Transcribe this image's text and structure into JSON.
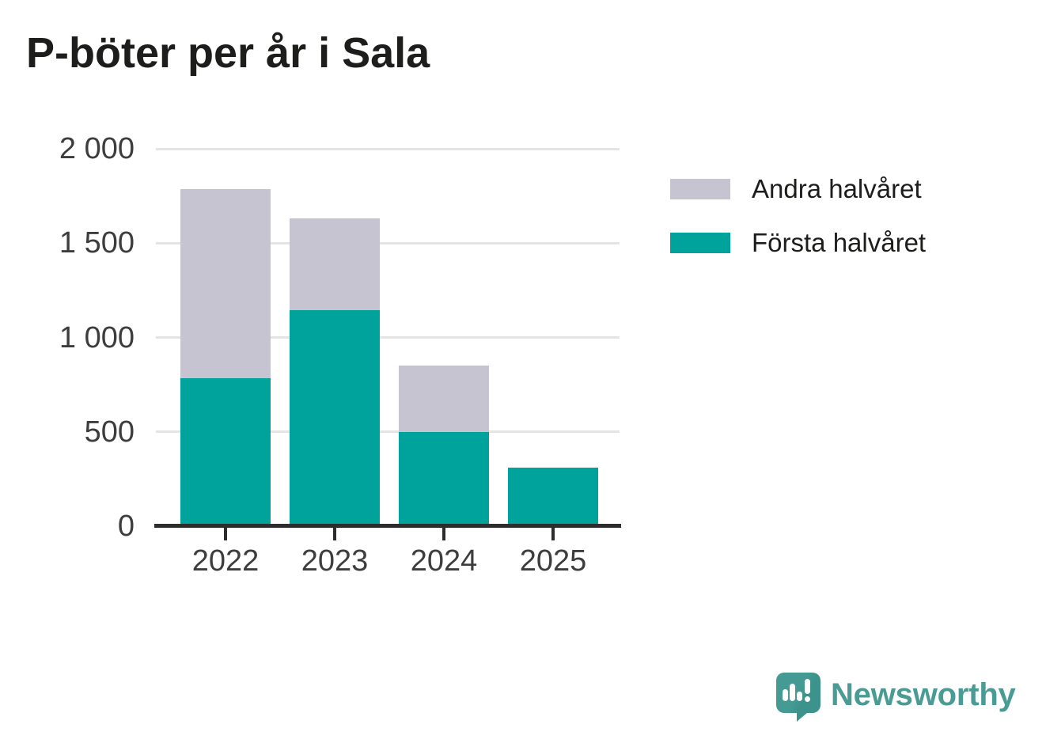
{
  "title": "P-böter per år i Sala",
  "legend": {
    "items": [
      {
        "label": "Andra halvåret",
        "color": "#c6c4d0"
      },
      {
        "label": "Första halvåret",
        "color": "#00a39b"
      }
    ]
  },
  "chart_data": {
    "type": "bar",
    "stacked": true,
    "title": "P-böter per år i Sala",
    "categories": [
      "2022",
      "2023",
      "2024",
      "2025"
    ],
    "series": [
      {
        "name": "Första halvåret",
        "color": "#00a39b",
        "values": [
          785,
          1145,
          500,
          310
        ]
      },
      {
        "name": "Andra halvåret",
        "color": "#c6c4d0",
        "values": [
          1000,
          485,
          350,
          0
        ]
      }
    ],
    "xlabel": "",
    "ylabel": "",
    "ylim": [
      0,
      2000
    ],
    "yticks": [
      0,
      500,
      1000,
      1500,
      2000
    ],
    "ytick_labels": [
      "0",
      "500",
      "1 000",
      "1 500",
      "2 000"
    ],
    "grid": true,
    "legend_position": "right",
    "colors": {
      "first_half": "#00a39b",
      "second_half": "#c6c4d0",
      "gridline": "#e4e4e4",
      "axis": "#2d2d2d",
      "tick_text": "#3d3d3d",
      "title_text": "#1d1d1b"
    }
  },
  "branding": {
    "logo_text": "Newsworthy",
    "logo_color": "#4a9b94",
    "bubble_color": "#459b93",
    "bubble_shade": "#3c938c"
  }
}
